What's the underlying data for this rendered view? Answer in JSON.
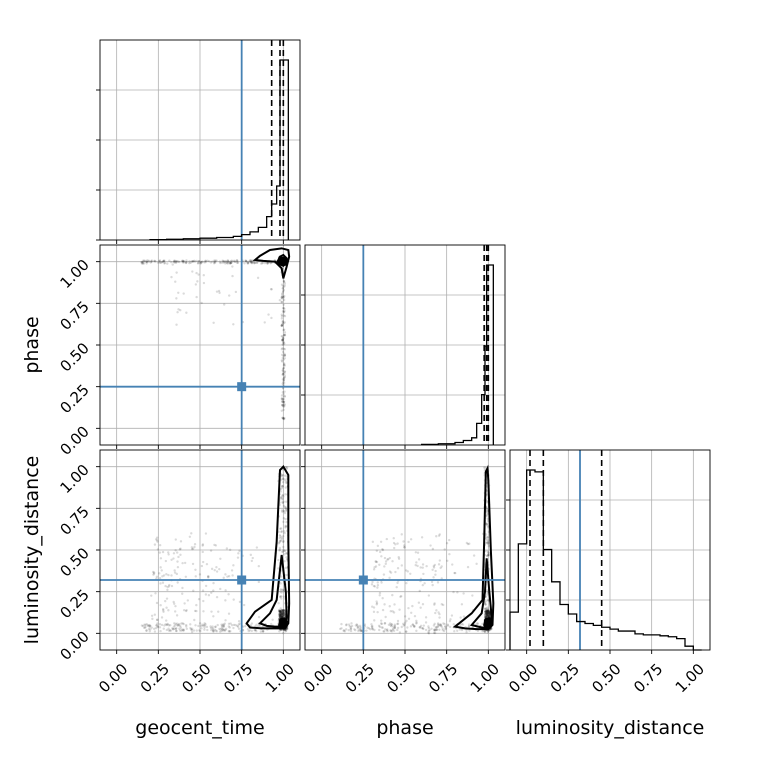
{
  "chart_data": {
    "type": "scatter",
    "kind": "corner plot",
    "parameters": [
      "geocent_time",
      "phase",
      "luminosity_distance"
    ],
    "axis_range": [
      -0.1,
      1.1
    ],
    "tick_labels": [
      "0.00",
      "0.25",
      "0.50",
      "0.75",
      "1.00"
    ],
    "tick_values": [
      0,
      0.25,
      0.5,
      0.75,
      1.0
    ],
    "grid": true,
    "colors": {
      "truth": "#4682b4",
      "samples": "#000000",
      "quantiles": "#000000"
    },
    "truths": {
      "geocent_time": 0.75,
      "phase": 0.25,
      "luminosity_distance": 0.32
    },
    "quantiles": {
      "geocent_time": [
        0.93,
        0.98,
        1.0
      ],
      "phase": [
        0.975,
        0.99,
        1.0
      ],
      "luminosity_distance": [
        0.02,
        0.1,
        0.45
      ]
    },
    "histograms": {
      "geocent_time": {
        "edges": [
          0.2,
          0.3,
          0.4,
          0.5,
          0.6,
          0.7,
          0.75,
          0.8,
          0.85,
          0.9,
          0.93,
          0.96,
          0.98,
          1.03
        ],
        "counts": [
          0.002,
          0.004,
          0.007,
          0.01,
          0.014,
          0.02,
          0.03,
          0.045,
          0.07,
          0.13,
          0.2,
          0.3,
          1.0
        ]
      },
      "phase": {
        "edges": [
          0.6,
          0.7,
          0.8,
          0.85,
          0.9,
          0.93,
          0.96,
          0.98,
          0.99,
          1.03
        ],
        "counts": [
          0.003,
          0.007,
          0.014,
          0.025,
          0.04,
          0.12,
          0.28,
          0.55,
          1.0
        ]
      },
      "luminosity_distance": {
        "edges": [
          -0.1,
          -0.05,
          0.0,
          0.05,
          0.1,
          0.15,
          0.2,
          0.25,
          0.3,
          0.35,
          0.4,
          0.45,
          0.5,
          0.55,
          0.6,
          0.65,
          0.7,
          0.75,
          0.8,
          0.85,
          0.9,
          0.95,
          1.0,
          1.05
        ],
        "counts": [
          0.2,
          0.56,
          0.95,
          0.94,
          0.53,
          0.36,
          0.24,
          0.19,
          0.15,
          0.14,
          0.13,
          0.12,
          0.11,
          0.1,
          0.1,
          0.085,
          0.08,
          0.08,
          0.075,
          0.07,
          0.06,
          0.02,
          0.0
        ]
      }
    },
    "contours_2d": {
      "phase_vs_geocent_time": [
        {
          "level": "outer",
          "points": [
            [
              0.83,
              1.01
            ],
            [
              0.86,
              1.035
            ],
            [
              0.92,
              1.07
            ],
            [
              0.99,
              1.08
            ],
            [
              1.03,
              1.07
            ],
            [
              1.035,
              1.03
            ],
            [
              1.02,
              0.97
            ],
            [
              1.0,
              0.9
            ],
            [
              0.99,
              0.96
            ],
            [
              0.95,
              1.0
            ],
            [
              0.88,
              1.005
            ]
          ]
        },
        {
          "level": "inner",
          "points": [
            [
              0.965,
              1.0
            ],
            [
              0.98,
              1.03
            ],
            [
              1.0,
              1.04
            ],
            [
              1.02,
              1.02
            ],
            [
              1.015,
              0.99
            ],
            [
              1.0,
              0.975
            ],
            [
              0.98,
              0.985
            ]
          ]
        }
      ],
      "luminosity_distance_vs_geocent_time": [
        {
          "level": "outer",
          "points": [
            [
              0.78,
              0.06
            ],
            [
              0.83,
              0.13
            ],
            [
              0.93,
              0.2
            ],
            [
              0.96,
              0.55
            ],
            [
              0.98,
              0.98
            ],
            [
              1.0,
              1.0
            ],
            [
              1.03,
              0.95
            ],
            [
              1.03,
              0.55
            ],
            [
              1.035,
              0.18
            ],
            [
              1.03,
              0.06
            ],
            [
              1.01,
              0.03
            ],
            [
              0.95,
              0.03
            ],
            [
              0.87,
              0.03
            ],
            [
              0.8,
              0.035
            ]
          ]
        },
        {
          "level": "mid",
          "points": [
            [
              0.86,
              0.06
            ],
            [
              0.92,
              0.12
            ],
            [
              0.96,
              0.2
            ],
            [
              0.99,
              0.47
            ],
            [
              1.015,
              0.25
            ],
            [
              1.02,
              0.1
            ],
            [
              1.01,
              0.04
            ],
            [
              0.95,
              0.04
            ],
            [
              0.9,
              0.045
            ]
          ]
        },
        {
          "level": "inner",
          "points": [
            [
              0.975,
              0.05
            ],
            [
              0.985,
              0.085
            ],
            [
              1.005,
              0.09
            ],
            [
              1.02,
              0.07
            ],
            [
              1.01,
              0.035
            ],
            [
              0.99,
              0.03
            ]
          ]
        }
      ],
      "luminosity_distance_vs_phase": [
        {
          "level": "outer",
          "points": [
            [
              0.8,
              0.04
            ],
            [
              0.9,
              0.12
            ],
            [
              0.965,
              0.2
            ],
            [
              0.975,
              0.55
            ],
            [
              0.985,
              0.97
            ],
            [
              0.995,
              0.99
            ],
            [
              1.0,
              0.92
            ],
            [
              1.015,
              0.5
            ],
            [
              1.03,
              0.18
            ],
            [
              1.025,
              0.05
            ],
            [
              1.0,
              0.025
            ],
            [
              0.93,
              0.025
            ],
            [
              0.86,
              0.03
            ]
          ]
        },
        {
          "level": "mid",
          "points": [
            [
              0.9,
              0.05
            ],
            [
              0.96,
              0.12
            ],
            [
              0.98,
              0.25
            ],
            [
              0.99,
              0.45
            ],
            [
              1.005,
              0.26
            ],
            [
              1.02,
              0.1
            ],
            [
              1.01,
              0.035
            ],
            [
              0.96,
              0.035
            ]
          ]
        },
        {
          "level": "inner",
          "points": [
            [
              0.975,
              0.05
            ],
            [
              0.985,
              0.085
            ],
            [
              1.005,
              0.09
            ],
            [
              1.02,
              0.07
            ],
            [
              1.01,
              0.035
            ],
            [
              0.99,
              0.03
            ]
          ]
        }
      ]
    }
  }
}
